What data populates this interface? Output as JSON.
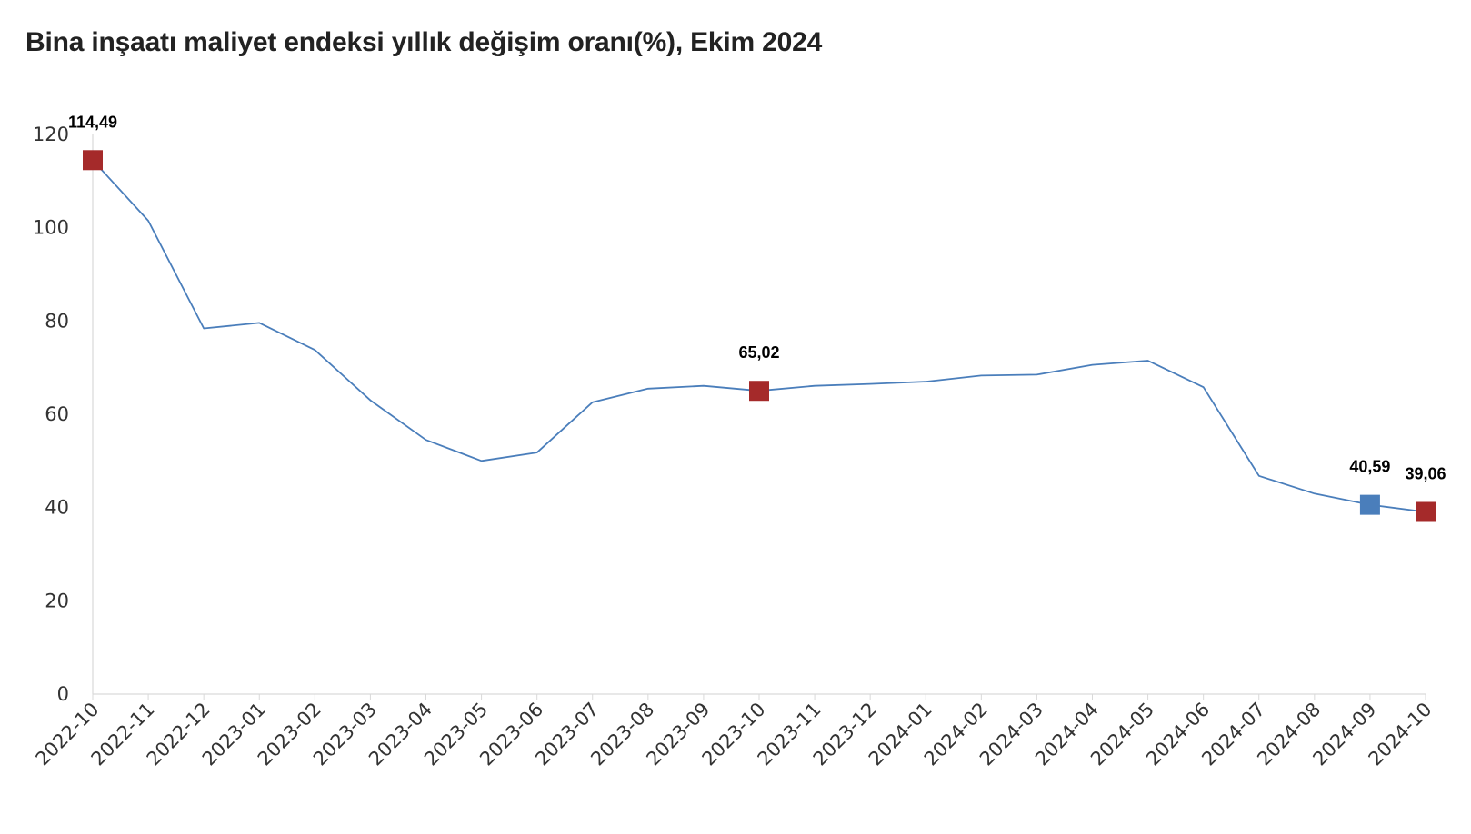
{
  "chart_data": {
    "type": "line",
    "title": "Bina inşaatı maliyet endeksi yıllık değişim oranı(%), Ekim 2024",
    "xlabel": "",
    "ylabel": "",
    "ylim": [
      0,
      120
    ],
    "yticks": [
      0,
      20,
      40,
      60,
      80,
      100,
      120
    ],
    "grid": false,
    "legend": "none",
    "categories": [
      "2022-10",
      "2022-11",
      "2022-12",
      "2023-01",
      "2023-02",
      "2023-03",
      "2023-04",
      "2023-05",
      "2023-06",
      "2023-07",
      "2023-08",
      "2023-09",
      "2023-10",
      "2023-11",
      "2023-12",
      "2024-01",
      "2024-02",
      "2024-03",
      "2024-04",
      "2024-05",
      "2024-06",
      "2024-07",
      "2024-08",
      "2024-09",
      "2024-10"
    ],
    "series": [
      {
        "values": [
          114.49,
          101.5,
          78.4,
          79.6,
          73.8,
          63.0,
          54.5,
          50.0,
          51.8,
          62.6,
          65.5,
          66.1,
          65.02,
          66.1,
          66.5,
          67.0,
          68.3,
          68.5,
          70.6,
          71.5,
          65.8,
          46.8,
          43.0,
          40.59,
          39.06
        ],
        "color": "#4a7ebb"
      }
    ],
    "highlights": [
      {
        "category": "2022-10",
        "value": 114.49,
        "label": "114,49",
        "color": "#a52a2a"
      },
      {
        "category": "2023-10",
        "value": 65.02,
        "label": "65,02",
        "color": "#a52a2a"
      },
      {
        "category": "2024-09",
        "value": 40.59,
        "label": "40,59",
        "color": "#4a7ebb"
      },
      {
        "category": "2024-10",
        "value": 39.06,
        "label": "39,06",
        "color": "#a52a2a"
      }
    ]
  }
}
